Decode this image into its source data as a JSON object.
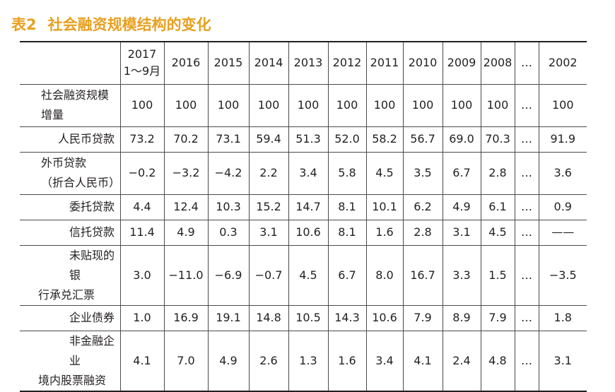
{
  "title": {
    "number": "表2",
    "text": "社会融资规模结构的变化"
  },
  "table": {
    "header": [
      "2017\n1～9月",
      "2016",
      "2015",
      "2014",
      "2013",
      "2012",
      "2011",
      "2010",
      "2009",
      "2008",
      "…",
      "2002"
    ],
    "rows": [
      {
        "label": "社会融资规模增量",
        "label_lines": [
          "社会融资规模",
          "增量"
        ],
        "values": [
          "100",
          "100",
          "100",
          "100",
          "100",
          "100",
          "100",
          "100",
          "100",
          "100",
          "…",
          "100"
        ]
      },
      {
        "label": "人民币贷款",
        "label_lines": [
          "人民币贷款"
        ],
        "values": [
          "73.2",
          "70.2",
          "73.1",
          "59.4",
          "51.3",
          "52.0",
          "58.2",
          "56.7",
          "69.0",
          "70.3",
          "…",
          "91.9"
        ]
      },
      {
        "label": "外币贷款（折合人民币）",
        "label_lines": [
          "外币贷款",
          "（折合人民币）"
        ],
        "values": [
          "−0.2",
          "−3.2",
          "−4.2",
          "2.2",
          "3.4",
          "5.8",
          "4.5",
          "3.5",
          "6.7",
          "2.8",
          "…",
          "3.6"
        ]
      },
      {
        "label": "委托贷款",
        "label_lines": [
          "委托贷款"
        ],
        "values": [
          "4.4",
          "12.4",
          "10.3",
          "15.2",
          "14.7",
          "8.1",
          "10.1",
          "6.2",
          "4.9",
          "6.1",
          "…",
          "0.9"
        ]
      },
      {
        "label": "信托贷款",
        "label_lines": [
          "信托贷款"
        ],
        "values": [
          "11.4",
          "4.9",
          "0.3",
          "3.1",
          "10.6",
          "8.1",
          "1.6",
          "2.8",
          "3.1",
          "4.5",
          "…",
          "——"
        ]
      },
      {
        "label": "未贴现的银行承兑汇票",
        "label_lines": [
          "未贴现的银",
          "行承兑汇票"
        ],
        "values": [
          "3.0",
          "−11.0",
          "−6.9",
          "−0.7",
          "4.5",
          "6.7",
          "8.0",
          "16.7",
          "3.3",
          "1.5",
          "…",
          "−3.5"
        ]
      },
      {
        "label": "企业债券",
        "label_lines": [
          "企业债券"
        ],
        "values": [
          "1.0",
          "16.9",
          "19.1",
          "14.8",
          "10.5",
          "14.3",
          "10.6",
          "7.9",
          "8.9",
          "7.9",
          "…",
          "1.8"
        ]
      },
      {
        "label": "非金融企业境内股票融资",
        "label_lines": [
          "非金融企业",
          "境内股票融资"
        ],
        "values": [
          "4.1",
          "7.0",
          "4.9",
          "2.6",
          "1.3",
          "1.6",
          "3.4",
          "4.1",
          "2.4",
          "4.8",
          "…",
          "3.1"
        ]
      }
    ]
  },
  "colors": {
    "title": "#e8a020",
    "text": "#231f20",
    "rule": "#4a4a4a"
  }
}
